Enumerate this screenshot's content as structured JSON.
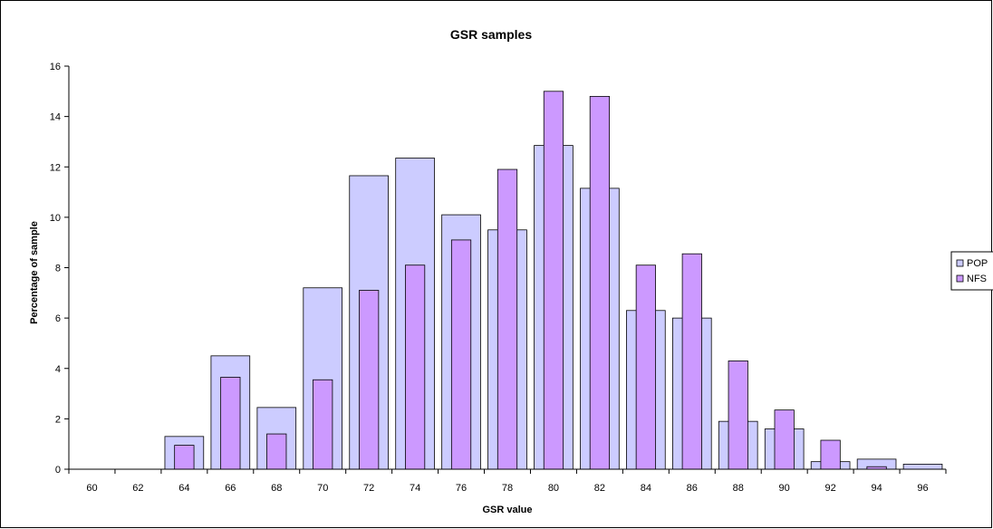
{
  "chart_data": {
    "type": "bar",
    "title": "GSR samples",
    "xlabel": "GSR value",
    "ylabel": "Percentage of sample",
    "ylim": [
      0,
      16
    ],
    "yticks": [
      "0",
      "2",
      "4",
      "6",
      "8",
      "10",
      "12",
      "14",
      "16"
    ],
    "categories": [
      "60",
      "62",
      "64",
      "66",
      "68",
      "70",
      "72",
      "74",
      "76",
      "78",
      "80",
      "82",
      "84",
      "86",
      "88",
      "90",
      "92",
      "94",
      "96"
    ],
    "grid": false,
    "legend": "right",
    "series": [
      {
        "name": "POP",
        "color": "#CCCCFF",
        "values": [
          0,
          0,
          1.3,
          4.5,
          2.45,
          7.2,
          11.65,
          12.35,
          10.1,
          9.5,
          12.85,
          11.15,
          6.3,
          6.0,
          1.9,
          1.6,
          0.3,
          0.4,
          0.2
        ]
      },
      {
        "name": "NFS",
        "color": "#CC99FF",
        "values": [
          0,
          0,
          0.95,
          3.65,
          1.4,
          3.55,
          7.1,
          8.1,
          9.1,
          11.9,
          15.0,
          14.8,
          8.1,
          8.55,
          4.3,
          2.35,
          1.15,
          0.1,
          0
        ]
      }
    ]
  }
}
